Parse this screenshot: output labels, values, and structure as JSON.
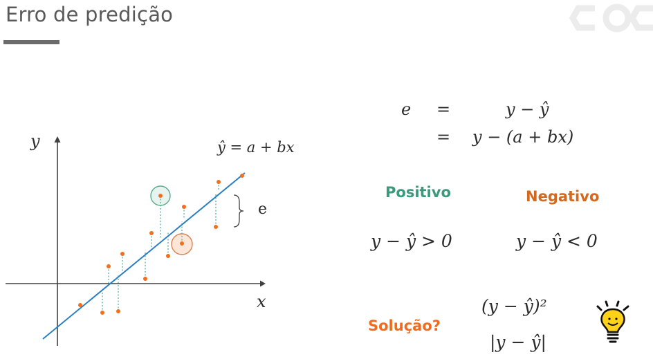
{
  "slide": {
    "title": "Erro de predição"
  },
  "diagram": {
    "y_label": "y",
    "x_label": "x",
    "line_label": "ŷ = a + bx",
    "brace_label": "e",
    "colors": {
      "line": "#2a7fc4",
      "point": "#f07020",
      "axis": "#404040",
      "positive": "#3a9a7a",
      "negative": "#c8602a"
    },
    "regression_line": {
      "intercept": 0.0,
      "slope": 1.0
    }
  },
  "equations": {
    "e_symbol": "e",
    "eq1_sign": "=",
    "eq1_rhs": "y − ŷ",
    "eq2_sign": "=",
    "eq2_rhs": "y − (a + bx)"
  },
  "positive": {
    "label": "Positivo",
    "expr": "y − ŷ > 0",
    "color": "#3a9a7a"
  },
  "negative": {
    "label": "Negativo",
    "expr": "y − ŷ < 0",
    "color": "#d2691e"
  },
  "solution": {
    "label": "Solução?",
    "color": "#f26b1d",
    "squared": "(y − ŷ)²",
    "absolute": "|y − ŷ|"
  },
  "icons": {
    "logo": "logo-icon",
    "bulb": "lightbulb-icon"
  }
}
